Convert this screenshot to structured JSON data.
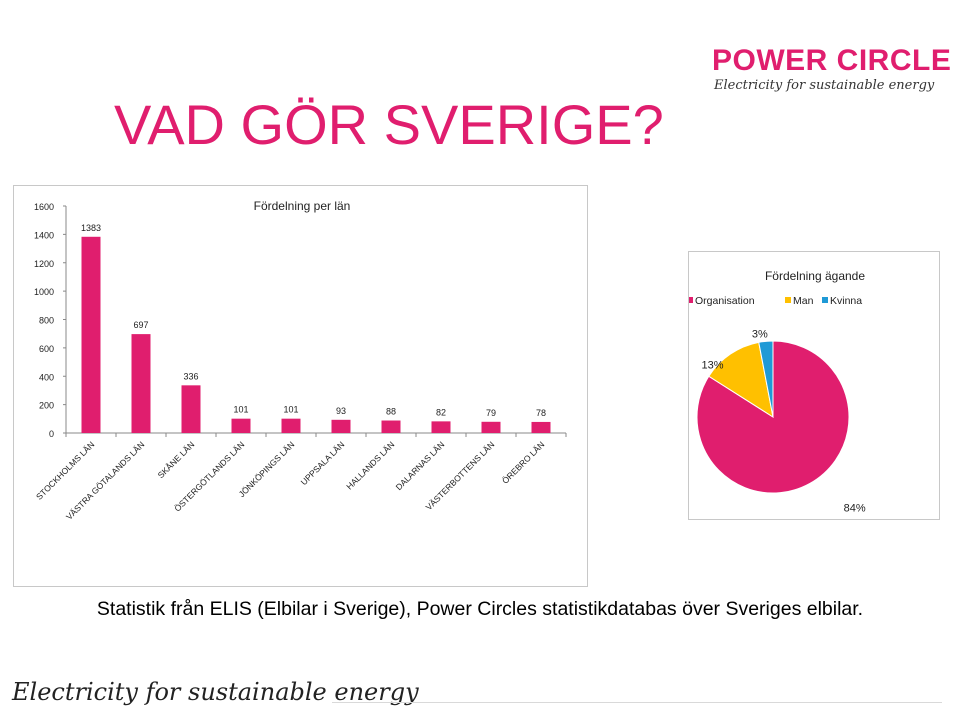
{
  "slide": {
    "title": "VAD GÖR SVERIGE?",
    "caption": "Statistik från ELIS (Elbilar i Sverige), Power Circles statistikdatabas över Sveriges elbilar.",
    "footer_tagline": "Electricity for sustainable energy",
    "title_color": "#e01e6e"
  },
  "logo": {
    "name": "POWER CIRCLE",
    "tagline": "Electricity for sustainable energy",
    "color": "#e01e6e"
  },
  "chart_data": [
    {
      "type": "bar",
      "title": "Fördelning per län",
      "categories": [
        "STOCKHOLMS LÄN",
        "VÄSTRA GÖTALANDS LÄN",
        "SKÅNE LÄN",
        "ÖSTERGÖTLANDS LÄN",
        "JÖNKÖPINGS LÄN",
        "UPPSALA LÄN",
        "HALLANDS LÄN",
        "DALARNAS LÄN",
        "VÄSTERBOTTENS LÄN",
        "ÖREBRO LÄN"
      ],
      "values": [
        1383,
        697,
        336,
        101,
        101,
        93,
        88,
        82,
        79,
        78
      ],
      "ylim": [
        0,
        1600
      ],
      "yticks": [
        0,
        200,
        400,
        600,
        800,
        1000,
        1200,
        1400,
        1600
      ],
      "grid": false,
      "bar_color": "#e01e6e"
    },
    {
      "type": "pie",
      "title": "Fördelning ägande",
      "legend_position": "top",
      "slices": [
        {
          "label": "Organisation",
          "value": 84,
          "display": "84%",
          "color": "#e01e6e"
        },
        {
          "label": "Man",
          "value": 13,
          "display": "13%",
          "color": "#ffc000"
        },
        {
          "label": "Kvinna",
          "value": 3,
          "display": "3%",
          "color": "#1f9ad6"
        }
      ]
    }
  ]
}
